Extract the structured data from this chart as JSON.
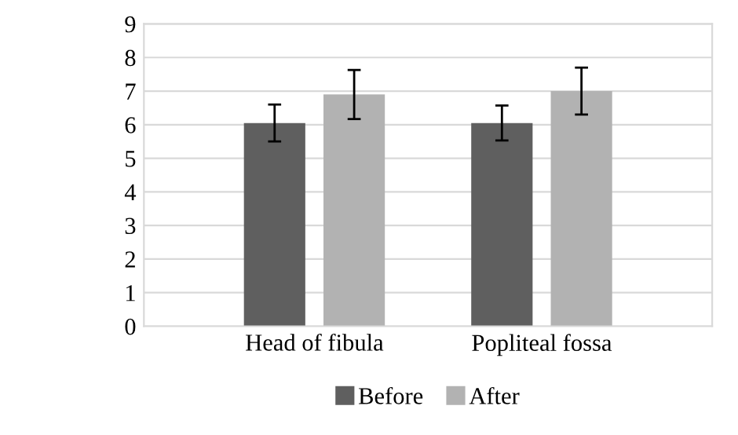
{
  "chart_data": {
    "type": "bar",
    "categories": [
      "Head of fibula",
      "Popliteal fossa"
    ],
    "series": [
      {
        "name": "Before",
        "color": "#5f5f5f",
        "values": [
          6.05,
          6.05
        ],
        "errors": [
          0.55,
          0.52
        ]
      },
      {
        "name": "After",
        "color": "#b2b2b2",
        "values": [
          6.9,
          7.0
        ],
        "errors": [
          0.73,
          0.7
        ]
      }
    ],
    "ylim": [
      0,
      9
    ],
    "yticks": [
      0,
      1,
      2,
      3,
      4,
      5,
      6,
      7,
      8,
      9
    ],
    "grid": "y",
    "legend": "bottom"
  }
}
